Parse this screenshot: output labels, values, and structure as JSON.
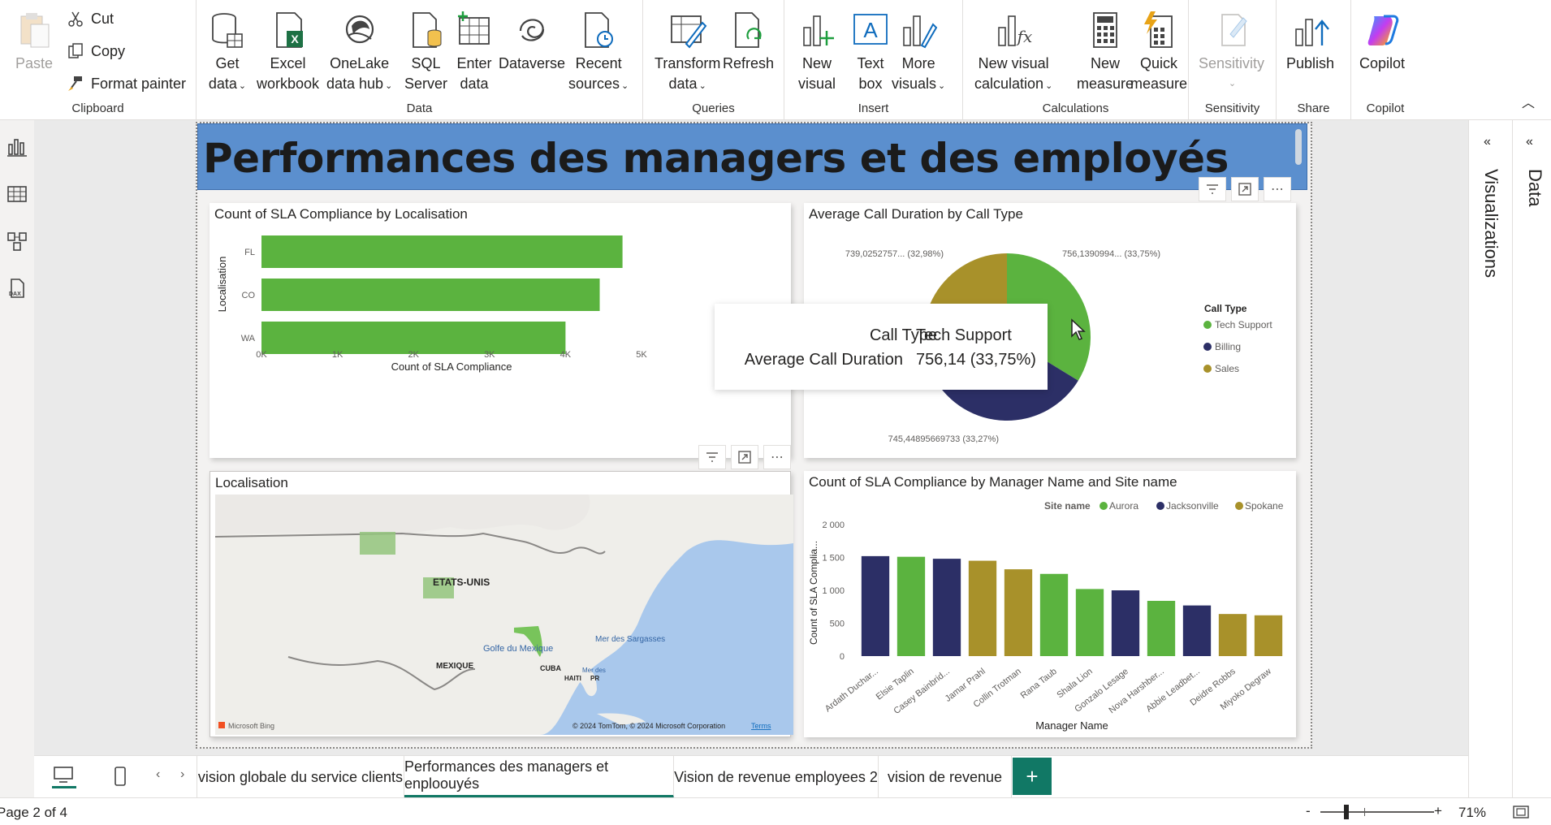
{
  "ribbon": {
    "clipboard": {
      "label": "Clipboard",
      "paste": "Paste",
      "cut": "Cut",
      "copy": "Copy",
      "format_painter": "Format painter"
    },
    "data": {
      "label": "Data",
      "get_data": [
        "Get",
        "data"
      ],
      "excel": [
        "Excel",
        "workbook"
      ],
      "onelake": [
        "OneLake",
        "data hub"
      ],
      "sql": [
        "SQL",
        "Server"
      ],
      "enter": [
        "Enter",
        "data"
      ],
      "dataverse": "Dataverse",
      "recent": [
        "Recent",
        "sources"
      ]
    },
    "queries": {
      "label": "Queries",
      "transform": [
        "Transform",
        "data"
      ],
      "refresh": "Refresh"
    },
    "insert": {
      "label": "Insert",
      "new_visual": [
        "New",
        "visual"
      ],
      "text_box": [
        "Text",
        "box"
      ],
      "more_visuals": [
        "More",
        "visuals"
      ]
    },
    "calculations": {
      "label": "Calculations",
      "new_visual_calc": [
        "New visual",
        "calculation"
      ],
      "new_measure": [
        "New",
        "measure"
      ],
      "quick_measure": [
        "Quick",
        "measure"
      ]
    },
    "sensitivity": {
      "label": "Sensitivity",
      "btn": "Sensitivity"
    },
    "share": {
      "label": "Share",
      "publish": "Publish"
    },
    "copilot": {
      "label": "Copilot",
      "btn": "Copilot"
    }
  },
  "page_title": "Performances des managers et des employés",
  "visuals": {
    "bar_sla": {
      "title": "Count of SLA Compliance by Localisation"
    },
    "pie_calls": {
      "title": "Average Call Duration by Call Type"
    },
    "map": {
      "title": "Localisation",
      "labels": {
        "country": "ETATS-UNIS",
        "mexico": "MEXIQUE",
        "gulf": "Golfe du Mexique",
        "sargasso": "Mer des Sargasses",
        "cuba": "CUBA",
        "haiti": "HAITI",
        "pr": "PR",
        "mer": "Mer des",
        "bing": "Microsoft Bing",
        "copyright": "© 2024 TomTom, © 2024 Microsoft Corporation",
        "terms": "Terms"
      }
    },
    "col_managers": {
      "title": "Count of SLA Compliance by Manager Name and Site name"
    }
  },
  "tooltip": {
    "k1": "Call Type",
    "v1": "Tech Support",
    "k2": "Average Call Duration",
    "v2": "756,14 (33,75%)"
  },
  "right_panes": {
    "visualizations": "Visualizations",
    "data": "Data"
  },
  "tabs": [
    "vision globale du service clients",
    "Performances des managers et enploouyés",
    "Vision de revenue employees 2",
    "vision de revenue"
  ],
  "status": {
    "page": "Page 2 of 4",
    "zoom": "71%",
    "minus": "-",
    "plus": "+"
  },
  "colors": {
    "green": "#5bb33f",
    "navy": "#2c2f66",
    "gold": "#a8912a",
    "title_bg": "#5b8fce",
    "teal": "#117865"
  },
  "chart_data": [
    {
      "type": "bar",
      "orientation": "horizontal",
      "title": "Count of SLA Compliance by Localisation",
      "xlabel": "Count of SLA Compliance",
      "ylabel": "Localisation",
      "categories": [
        "FL",
        "CO",
        "WA"
      ],
      "values": [
        4750,
        4450,
        4000
      ],
      "xlim": [
        0,
        5000
      ],
      "ticks": [
        "0K",
        "1K",
        "2K",
        "3K",
        "4K",
        "5K"
      ],
      "tick_values": [
        0,
        1000,
        2000,
        3000,
        4000,
        5000
      ],
      "color": "#5bb33f"
    },
    {
      "type": "pie",
      "title": "Average Call Duration by Call Type",
      "legend_title": "Call Type",
      "legend_position": "right",
      "slices": [
        {
          "name": "Tech Support",
          "value": 756.1390994,
          "label": "756,1390994... (33,75%)",
          "color": "#5bb33f"
        },
        {
          "name": "Billing",
          "value": 745.44895669733,
          "label": "745,44895669733 (33,27%)",
          "color": "#2c2f66"
        },
        {
          "name": "Sales",
          "value": 739.0252757,
          "label": "739,0252757... (32,98%)",
          "color": "#a8912a"
        }
      ]
    },
    {
      "type": "bar",
      "title": "Count of SLA Compliance by Manager Name and Site name",
      "xlabel": "Manager Name",
      "ylabel": "Count of SLA Complia...",
      "legend_title": "Site name",
      "legend_position": "top-right",
      "series_names": [
        {
          "name": "Aurora",
          "color": "#5bb33f"
        },
        {
          "name": "Jacksonville",
          "color": "#2c2f66"
        },
        {
          "name": "Spokane",
          "color": "#a8912a"
        }
      ],
      "categories": [
        "Ardath Duchar...",
        "Elsie Taplin",
        "Casey Bainbrid...",
        "Jamar Prahl",
        "Collin Trotman",
        "Rana Taub",
        "Shala Lion",
        "Gonzalo Lesage",
        "Nova Harshber...",
        "Abbie Leadbet...",
        "Deidre Robbs",
        "Miyoko Degraw"
      ],
      "values": [
        1520,
        1510,
        1480,
        1450,
        1320,
        1250,
        1020,
        1000,
        840,
        770,
        640,
        620
      ],
      "site": [
        "Jacksonville",
        "Aurora",
        "Jacksonville",
        "Spokane",
        "Spokane",
        "Aurora",
        "Aurora",
        "Jacksonville",
        "Aurora",
        "Jacksonville",
        "Spokane",
        "Spokane"
      ],
      "ylim": [
        0,
        2000
      ],
      "ticks": [
        "0",
        "500",
        "1 000",
        "1 500",
        "2 000"
      ],
      "tick_values": [
        0,
        500,
        1000,
        1500,
        2000
      ]
    }
  ]
}
